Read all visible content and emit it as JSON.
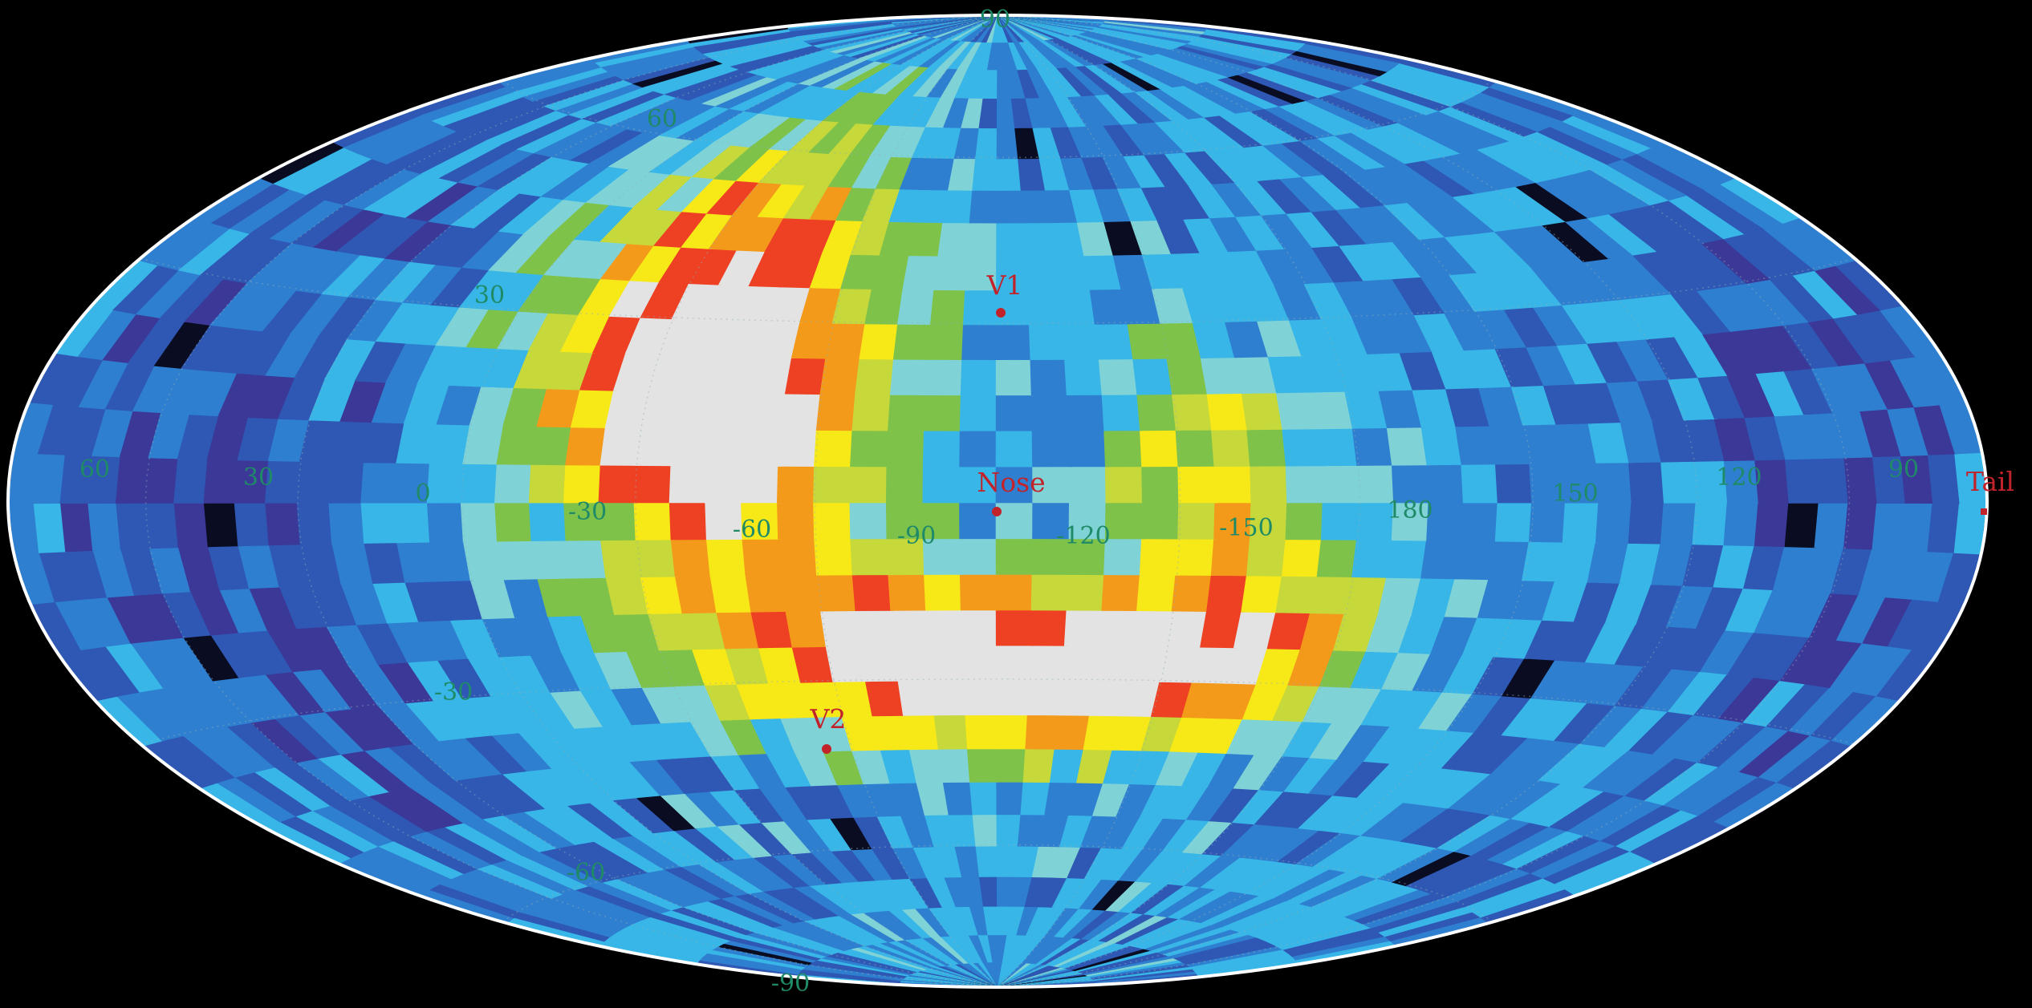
{
  "map": {
    "projection": "Hammer-Aitoff (all-sky)",
    "background_color": "#000000",
    "outline_color": "#ffffff",
    "grid_label_color": "#1f8a68",
    "marker_color": "#c2232b",
    "colormap": [
      "#3a2566",
      "#3c3898",
      "#2e58b4",
      "#2f7fd0",
      "#38b6e8",
      "#7fd3d6",
      "#7fc24a",
      "#c6d83a",
      "#f7e818",
      "#f49a1a",
      "#ee4023",
      "#e3e3e3"
    ],
    "special_cell_colors": {
      "dark_hole": "#0a0c22"
    }
  },
  "labels": {
    "latitude": {
      "pole_top": "90",
      "n60": "60",
      "n30": "30",
      "s30": "-30",
      "s60": "-60",
      "pole_bottom": "-90"
    },
    "longitude": {
      "l60": "60",
      "l30": "30",
      "l0": "0",
      "lm30": "-30",
      "lm60": "-60",
      "lm90": "-90",
      "lm120": "-120",
      "lm150": "-150",
      "l180": "180",
      "l150": "150",
      "l120": "120",
      "l90": "90"
    }
  },
  "markers": {
    "v1": {
      "label": "V1"
    },
    "nose": {
      "label": "Nose"
    },
    "v2": {
      "label": "V2"
    },
    "tail": {
      "label": "Tail"
    }
  }
}
